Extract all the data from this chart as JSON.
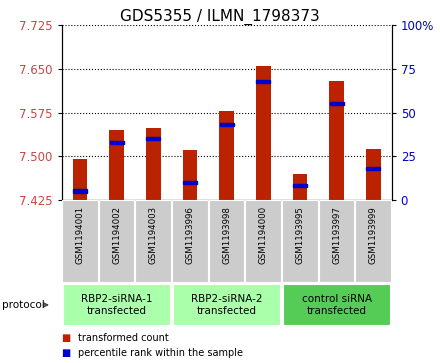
{
  "title": "GDS5355 / ILMN_1798373",
  "samples": [
    "GSM1194001",
    "GSM1194002",
    "GSM1194003",
    "GSM1193996",
    "GSM1193998",
    "GSM1194000",
    "GSM1193995",
    "GSM1193997",
    "GSM1193999"
  ],
  "transformed_counts": [
    7.495,
    7.545,
    7.548,
    7.51,
    7.578,
    7.655,
    7.47,
    7.63,
    7.512
  ],
  "percentile_ranks": [
    5,
    33,
    35,
    10,
    43,
    68,
    8,
    55,
    18
  ],
  "ylim_left": [
    7.425,
    7.725
  ],
  "yticks_left": [
    7.425,
    7.5,
    7.575,
    7.65,
    7.725
  ],
  "yticks_right": [
    0,
    25,
    50,
    75,
    100
  ],
  "bar_color": "#bb2200",
  "percentile_color": "#0000cc",
  "groups": [
    {
      "label": "RBP2-siRNA-1\ntransfected",
      "indices": [
        0,
        1,
        2
      ],
      "color": "#aaffaa"
    },
    {
      "label": "RBP2-siRNA-2\ntransfected",
      "indices": [
        3,
        4,
        5
      ],
      "color": "#aaffaa"
    },
    {
      "label": "control siRNA\ntransfected",
      "indices": [
        6,
        7,
        8
      ],
      "color": "#55cc55"
    }
  ],
  "protocol_label": "protocol",
  "legend_red": "transformed count",
  "legend_blue": "percentile rank within the sample",
  "axis_label_color_left": "#cc4444",
  "axis_label_color_right": "#0000cc",
  "bar_width": 0.4,
  "tick_label_bg": "#cccccc"
}
